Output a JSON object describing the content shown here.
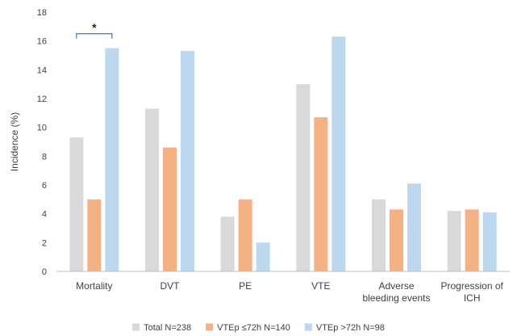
{
  "chart_data": {
    "type": "bar",
    "ylabel": "Incidence (%)",
    "ylim": [
      0,
      18
    ],
    "yticks": [
      0,
      2,
      4,
      6,
      8,
      10,
      12,
      14,
      16,
      18
    ],
    "grid": false,
    "legend_position": "bottom",
    "categories": [
      [
        "Mortality"
      ],
      [
        "DVT"
      ],
      [
        "PE"
      ],
      [
        "VTE"
      ],
      [
        "Adverse",
        "bleeding events"
      ],
      [
        "Progression of",
        "ICH"
      ]
    ],
    "series": [
      {
        "name": "Total N=238",
        "color": "#d9d9d9",
        "values": [
          9.3,
          11.3,
          3.8,
          13.0,
          5.0,
          4.2
        ]
      },
      {
        "name": "VTEp ≤72h N=140",
        "color": "#f4b183",
        "values": [
          5.0,
          8.6,
          5.0,
          10.7,
          4.3,
          4.3
        ]
      },
      {
        "name": "VTEp >72h N=98",
        "color": "#bdd7ee",
        "values": [
          15.5,
          15.3,
          2.0,
          16.3,
          6.1,
          4.1
        ]
      }
    ],
    "annotations": [
      {
        "text": "*",
        "category_index": 0,
        "from_series": 0,
        "to_series": 2,
        "y": 16.5,
        "bracket_color": "#4472c4"
      }
    ],
    "axis_color": "#bfbfbf"
  }
}
